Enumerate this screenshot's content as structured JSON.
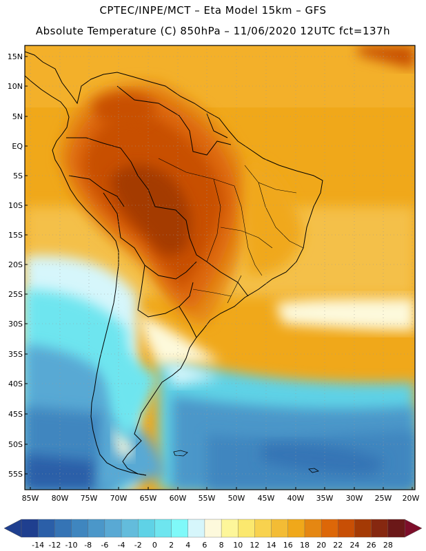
{
  "header": {
    "line1": "CPTEC/INPE/MCT –  Eta Model 15km – GFS",
    "line2": "Absolute Temperature (C) 850hPa – 11/06/2020 12UTC fct=137h"
  },
  "map": {
    "lat_labels": [
      "15N",
      "10N",
      "5N",
      "EQ",
      "5S",
      "10S",
      "15S",
      "20S",
      "25S",
      "30S",
      "35S",
      "40S",
      "45S",
      "50S",
      "55S"
    ],
    "lon_labels": [
      "85W",
      "80W",
      "75W",
      "70W",
      "65W",
      "60W",
      "55W",
      "50W",
      "45W",
      "40W",
      "35W",
      "30W",
      "25W",
      "20W"
    ],
    "region": "South America"
  },
  "colorbar": {
    "labels": [
      "-14",
      "-12",
      "-10",
      "-8",
      "-6",
      "-4",
      "-2",
      "0",
      "2",
      "4",
      "6",
      "8",
      "10",
      "12",
      "14",
      "16",
      "18",
      "20",
      "22",
      "24",
      "26",
      "28"
    ],
    "colors": [
      "#1f3f8f",
      "#2b5fa8",
      "#3574b5",
      "#3f86bf",
      "#4b97c9",
      "#59a9d4",
      "#63bcdc",
      "#5fd2e6",
      "#6ee5ef",
      "#7ff9f9",
      "#d6f6fb",
      "#fdf9dc",
      "#fdf69a",
      "#fbe86e",
      "#f8d24e",
      "#f3bc35",
      "#f0a81a",
      "#e58712",
      "#dd6708",
      "#c84f05",
      "#a43a05",
      "#862810",
      "#6b1818"
    ],
    "left_arrow_color": "#1f3f8f",
    "right_arrow_color": "#7d0e2a"
  }
}
